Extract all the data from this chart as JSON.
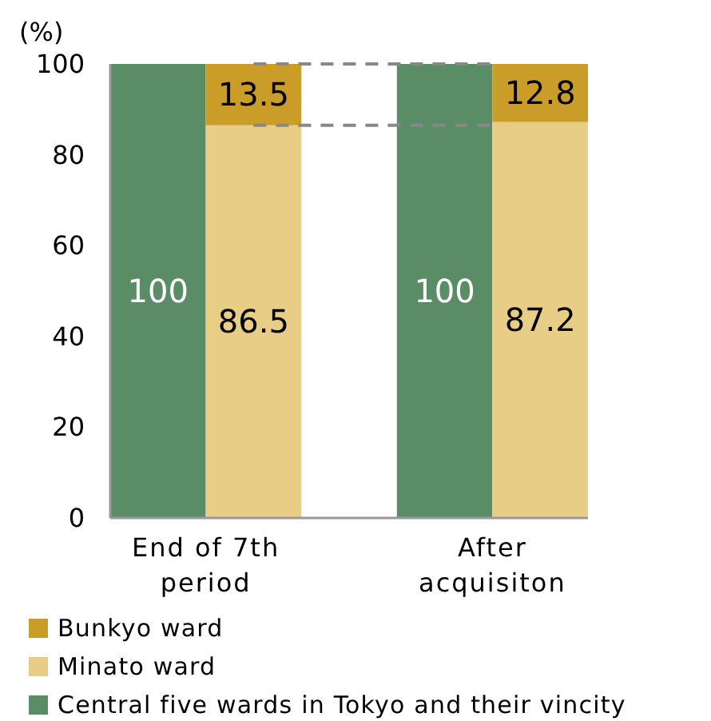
{
  "chart_data": {
    "type": "bar",
    "ylabel": "(%)",
    "categories": [
      "End of 7th period",
      null,
      null,
      "After acquisiton",
      null
    ],
    "stacked": true,
    "grid": false,
    "series": [
      {
        "name": "Central five wards in Tokyo and their vincity",
        "color": "#5a8c66",
        "values": [
          100,
          null,
          null,
          100,
          null
        ]
      },
      {
        "name": "Minato ward",
        "color": "#e8cd86",
        "values": [
          null,
          86.5,
          null,
          null,
          87.2
        ]
      },
      {
        "name": "Bunkyo ward",
        "color": "#c99d27",
        "values": [
          null,
          13.5,
          null,
          null,
          12.8
        ]
      }
    ],
    "ylim": [
      0,
      100
    ],
    "yticks": [
      0,
      20,
      40,
      60,
      80,
      100
    ],
    "data_labels": true,
    "legend": "bottom"
  }
}
